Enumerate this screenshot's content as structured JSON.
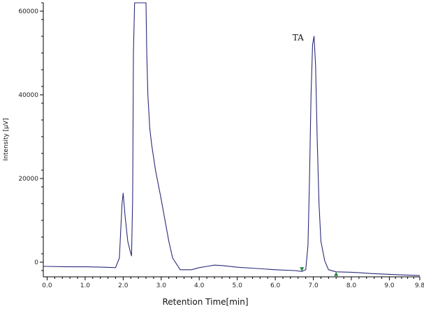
{
  "chart_data": {
    "type": "line",
    "title": "",
    "xlabel": "Retention Time[min]",
    "ylabel": "Intensity [µV]",
    "xlim": [
      -0.1,
      9.8
    ],
    "ylim": [
      -3500,
      62000
    ],
    "x_ticks": [
      0.0,
      1.0,
      2.0,
      3.0,
      4.0,
      5.0,
      6.0,
      7.0,
      8.0,
      9.0,
      9.8
    ],
    "x_tick_labels": [
      "0.0",
      "1.0",
      "2.0",
      "3.0",
      "4.0",
      "5.0",
      "6.0",
      "7.0",
      "8.0",
      "9.0",
      "9.8"
    ],
    "y_ticks": [
      0,
      20000,
      40000,
      60000
    ],
    "y_tick_labels": [
      "0",
      "20000",
      "40000",
      "60000"
    ],
    "grid": false,
    "colors": {
      "line": "#2a2a7a",
      "axis": "#000000",
      "marker": "#1f8a3a"
    },
    "series": [
      {
        "x": [
          -0.1,
          0.0,
          0.5,
          1.0,
          1.5,
          1.8,
          1.9,
          1.97,
          2.0,
          2.05,
          2.12,
          2.18,
          2.22,
          2.25,
          2.27,
          2.3,
          2.35,
          2.4,
          2.45,
          2.5,
          2.55,
          2.6,
          2.62,
          2.65,
          2.7,
          2.75,
          2.85,
          3.0,
          3.1,
          3.2,
          3.3,
          3.5,
          3.8,
          4.0,
          4.2,
          4.4,
          4.6,
          5.0,
          5.5,
          6.0,
          6.5,
          6.7,
          6.8,
          6.86,
          6.9,
          6.94,
          6.98,
          7.02,
          7.06,
          7.1,
          7.15,
          7.2,
          7.3,
          7.4,
          7.6,
          8.0,
          8.5,
          9.0,
          9.5,
          9.8
        ],
        "y": [
          -1000,
          -1000,
          -1100,
          -1100,
          -1200,
          -1300,
          1000,
          14000,
          16500,
          11000,
          5000,
          2800,
          1500,
          15000,
          50000,
          62000,
          62000,
          62000,
          62000,
          62000,
          62000,
          62000,
          50000,
          40000,
          32000,
          28000,
          22000,
          15000,
          10000,
          5000,
          1000,
          -1800,
          -1800,
          -1300,
          -1000,
          -700,
          -800,
          -1200,
          -1500,
          -1800,
          -2000,
          -2200,
          -1800,
          4000,
          20000,
          40000,
          52000,
          54000,
          47000,
          30000,
          14000,
          5000,
          300,
          -1800,
          -2300,
          -2400,
          -2700,
          -2900,
          -3100,
          -3200
        ]
      }
    ],
    "annotations": [
      {
        "text": "TA",
        "x": 6.6,
        "y": 53000
      }
    ],
    "markers": [
      {
        "x": 6.7,
        "y": -2200,
        "direction": "down"
      },
      {
        "x": 7.6,
        "y": -2300,
        "direction": "up"
      }
    ]
  }
}
